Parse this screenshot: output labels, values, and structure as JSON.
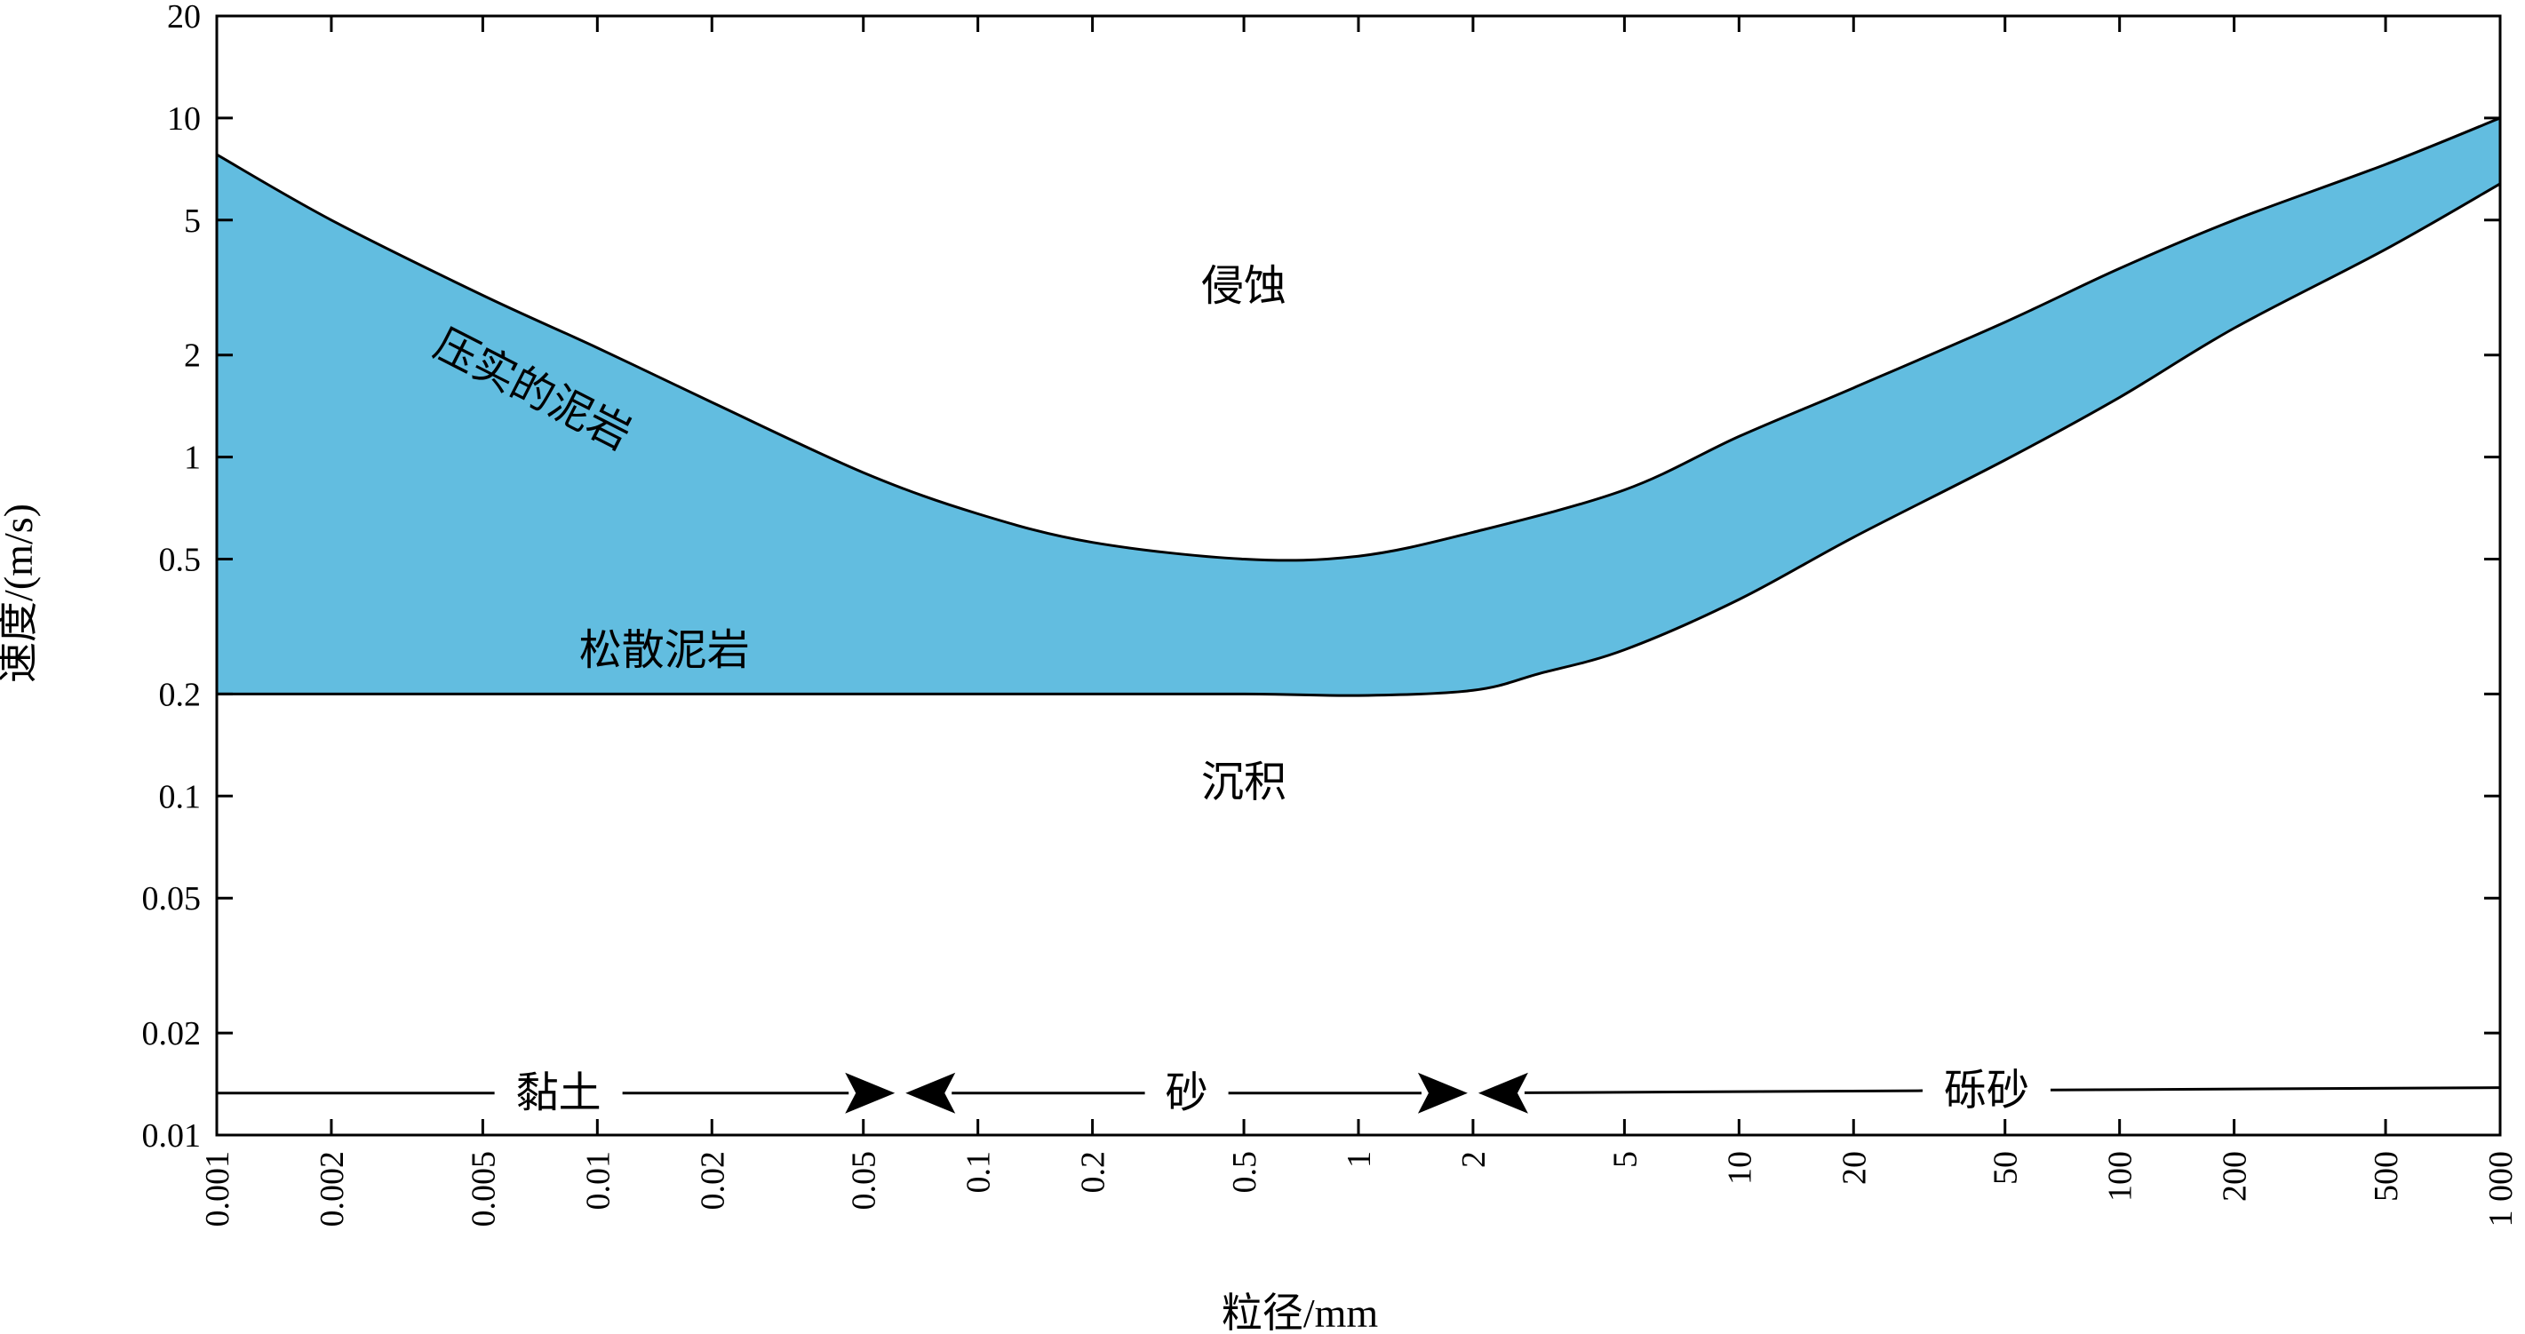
{
  "chart_data": {
    "type": "area",
    "title": "",
    "xlabel": "粒径/mm",
    "ylabel": "速度/(m/s)",
    "x_scale": "log",
    "y_scale": "log",
    "xlim": [
      0.001,
      1000
    ],
    "ylim": [
      0.01,
      20
    ],
    "x_ticks": [
      0.001,
      0.002,
      0.005,
      0.01,
      0.02,
      0.05,
      0.1,
      0.2,
      0.5,
      1,
      2,
      5,
      10,
      20,
      50,
      100,
      200,
      500,
      1000
    ],
    "x_tick_labels": [
      "0.001",
      "0.002",
      "0.005",
      "0.01",
      "0.02",
      "0.05",
      "0.1",
      "0.2",
      "0.5",
      "1",
      "2",
      "5",
      "10",
      "20",
      "50",
      "100",
      "200",
      "500",
      "1 000"
    ],
    "y_ticks": [
      0.01,
      0.02,
      0.05,
      0.1,
      0.2,
      0.5,
      1,
      2,
      5,
      10,
      20
    ],
    "y_tick_labels": [
      "0.01",
      "0.02",
      "0.05",
      "0.1",
      "0.2",
      "0.5",
      "1",
      "2",
      "5",
      "10",
      "20"
    ],
    "fill_color": "#62bde0",
    "upper_curve": {
      "x": [
        0.001,
        0.002,
        0.005,
        0.01,
        0.02,
        0.05,
        0.1,
        0.2,
        0.5,
        1,
        2,
        5,
        10,
        20,
        50,
        100,
        200,
        500,
        1000
      ],
      "y": [
        7.8,
        5.0,
        3.0,
        2.1,
        1.45,
        0.9,
        0.68,
        0.56,
        0.5,
        0.51,
        0.6,
        0.8,
        1.15,
        1.6,
        2.5,
        3.6,
        5.0,
        7.3,
        10.0
      ]
    },
    "lower_curve": {
      "x": [
        0.001,
        0.01,
        0.1,
        0.5,
        1,
        2,
        3,
        5,
        10,
        20,
        50,
        100,
        200,
        500,
        1000
      ],
      "y": [
        0.2,
        0.2,
        0.2,
        0.2,
        0.198,
        0.205,
        0.23,
        0.27,
        0.38,
        0.58,
        0.98,
        1.5,
        2.4,
        4.1,
        6.4
      ]
    },
    "annotations": [
      {
        "text": "侵蚀",
        "x": 0.5,
        "y": 2.9
      },
      {
        "text": "压实的泥岩",
        "x": 0.0065,
        "y": 1.45
      },
      {
        "text": "松散泥岩",
        "x": 0.015,
        "y": 0.245
      },
      {
        "text": "沉积",
        "x": 0.5,
        "y": 0.1
      }
    ],
    "size_classes": [
      {
        "label": "黏土",
        "from": 0.001,
        "to": 0.0625,
        "v": 0.0133
      },
      {
        "label": "砂",
        "from": 0.0625,
        "to": 2,
        "v": 0.0133
      },
      {
        "label": "砾砂",
        "from": 2,
        "to": 1000,
        "v": 0.0133,
        "v_end": 0.0138
      }
    ]
  }
}
